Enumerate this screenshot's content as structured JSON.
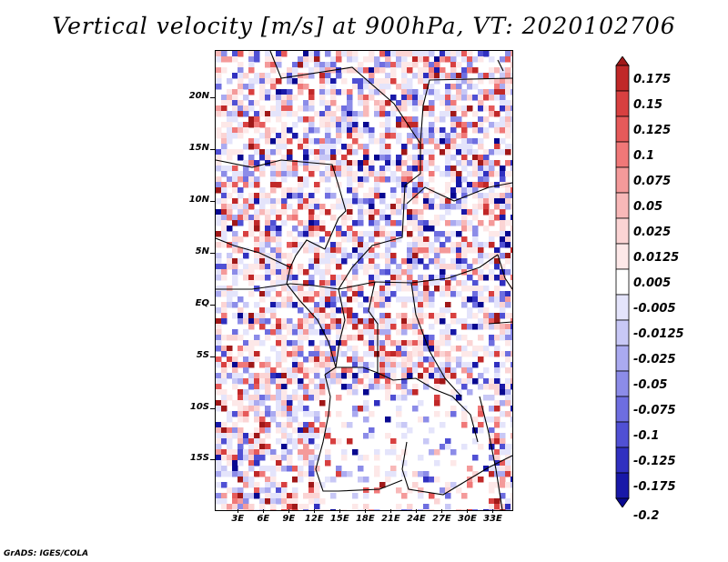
{
  "title": "Vertical velocity [m/s] at 900hPa, VT: 2020102706",
  "lat_labels": [
    "20N",
    "15N",
    "10N",
    "5N",
    "EQ",
    "5S",
    "10S",
    "15S"
  ],
  "lat_values": [
    20,
    15,
    10,
    5,
    0,
    -5,
    -10,
    -15
  ],
  "lon_labels": [
    "3E",
    "6E",
    "9E",
    "12E",
    "15E",
    "18E",
    "21E",
    "24E",
    "27E",
    "30E",
    "33E"
  ],
  "lon_values": [
    3,
    6,
    9,
    12,
    15,
    18,
    21,
    24,
    27,
    30,
    33
  ],
  "colorbar": {
    "labels": [
      "0.175",
      "0.15",
      "0.125",
      "0.1",
      "0.075",
      "0.05",
      "0.025",
      "0.0125",
      "0.005",
      "-0.005",
      "-0.0125",
      "-0.025",
      "-0.05",
      "-0.075",
      "-0.1",
      "-0.125",
      "-0.175",
      "-0.2"
    ],
    "colors": [
      "#a01818",
      "#c02828",
      "#d84040",
      "#e65a5a",
      "#f07878",
      "#f49a9a",
      "#f8b8b8",
      "#fbd4d4",
      "#fde8e8",
      "#ffffff",
      "#e4e4fb",
      "#c8c8f6",
      "#aaaaf0",
      "#8c8ce8",
      "#6e6ee0",
      "#5050d4",
      "#3030c0",
      "#1818a8",
      "#080890"
    ]
  },
  "footer": "GrADS: IGES/COLA"
}
